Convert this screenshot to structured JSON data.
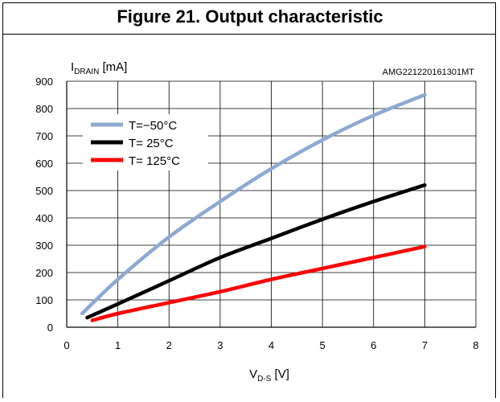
{
  "figure": {
    "title": "Figure 21. Output characteristic"
  },
  "chart_data": {
    "type": "line",
    "title": "Figure 21. Output characteristic",
    "code": "AMG221220161301MT",
    "ylabel_main": "I",
    "ylabel_sub": "DRAIN",
    "ylabel_unit": " [mA]",
    "xlabel_main": "V",
    "xlabel_sub": "D-S",
    "xlabel_unit": " [V]",
    "xlim": [
      0,
      8
    ],
    "ylim": [
      0,
      900
    ],
    "xticks": [
      "0",
      "1",
      "2",
      "3",
      "4",
      "5",
      "6",
      "7",
      "8"
    ],
    "yticks": [
      "0",
      "100",
      "200",
      "300",
      "400",
      "500",
      "600",
      "700",
      "800",
      "900"
    ],
    "grid": true,
    "legend_position": "top-left",
    "series": [
      {
        "name": "T=−50°C",
        "color": "#8ea9d2",
        "x": [
          0.3,
          1,
          2,
          3,
          4,
          5,
          6,
          7
        ],
        "y": [
          50,
          175,
          330,
          460,
          580,
          685,
          775,
          850
        ]
      },
      {
        "name": "T= 25°C",
        "color": "#000000",
        "x": [
          0.4,
          1,
          2,
          3,
          4,
          5,
          6,
          7
        ],
        "y": [
          35,
          85,
          170,
          255,
          325,
          395,
          460,
          520
        ]
      },
      {
        "name": "T= 125°C",
        "color": "#ff0000",
        "x": [
          0.5,
          1,
          2,
          3,
          4,
          5,
          6,
          7
        ],
        "y": [
          25,
          50,
          90,
          130,
          175,
          215,
          255,
          295
        ]
      }
    ]
  }
}
